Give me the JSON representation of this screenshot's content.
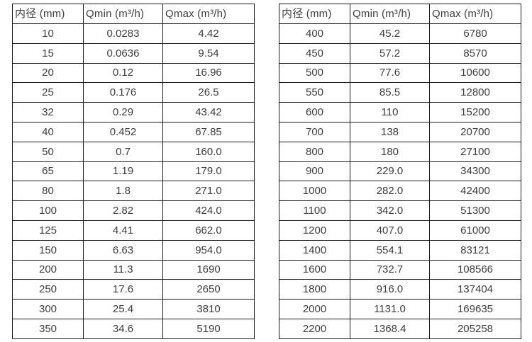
{
  "colors": {
    "background": "#ffffff",
    "border": "#1c1c1c",
    "text": "#3e3e3e"
  },
  "columns": [
    "内径 (mm)",
    "Qmin (m³/h)",
    "Qmax (m³/h)"
  ],
  "tables": [
    {
      "name": "small-diameter-flow-table",
      "rows": [
        [
          "10",
          "0.0283",
          "4.42"
        ],
        [
          "15",
          "0.0636",
          "9.54"
        ],
        [
          "20",
          "0.12",
          "16.96"
        ],
        [
          "25",
          "0.176",
          "26.5"
        ],
        [
          "32",
          "0.29",
          "43.42"
        ],
        [
          "40",
          "0.452",
          "67.85"
        ],
        [
          "50",
          "0.7",
          "160.0"
        ],
        [
          "65",
          "1.19",
          "179.0"
        ],
        [
          "80",
          "1.8",
          "271.0"
        ],
        [
          "100",
          "2.82",
          "424.0"
        ],
        [
          "125",
          "4.41",
          "662.0"
        ],
        [
          "150",
          "6.63",
          "954.0"
        ],
        [
          "200",
          "11.3",
          "1690"
        ],
        [
          "250",
          "17.6",
          "2650"
        ],
        [
          "300",
          "25.4",
          "3810"
        ],
        [
          "350",
          "34.6",
          "5190"
        ]
      ]
    },
    {
      "name": "large-diameter-flow-table",
      "rows": [
        [
          "400",
          "45.2",
          "6780"
        ],
        [
          "450",
          "57.2",
          "8570"
        ],
        [
          "500",
          "77.6",
          "10600"
        ],
        [
          "550",
          "85.5",
          "12800"
        ],
        [
          "600",
          "110",
          "15200"
        ],
        [
          "700",
          "138",
          "20700"
        ],
        [
          "800",
          "180",
          "27100"
        ],
        [
          "900",
          "229.0",
          "34300"
        ],
        [
          "1000",
          "282.0",
          "42400"
        ],
        [
          "1100",
          "342.0",
          "51300"
        ],
        [
          "1200",
          "407.0",
          "61000"
        ],
        [
          "1400",
          "554.1",
          "83121"
        ],
        [
          "1600",
          "732.7",
          "108566"
        ],
        [
          "1800",
          "916.0",
          "137404"
        ],
        [
          "2000",
          "1131.0",
          "169635"
        ],
        [
          "2200",
          "1368.4",
          "205258"
        ]
      ]
    }
  ]
}
